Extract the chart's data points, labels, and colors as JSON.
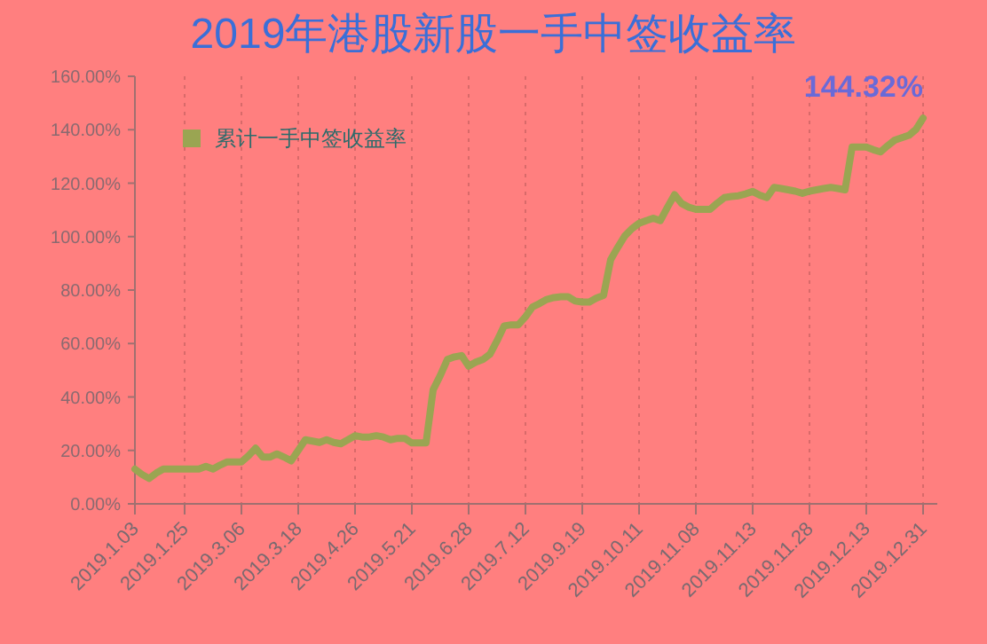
{
  "chart_data": {
    "type": "line",
    "title": "2019年港股新股一手中签收益率",
    "categories": [
      "2019.1.03",
      null,
      null,
      null,
      null,
      null,
      null,
      "2019.1.25",
      null,
      null,
      null,
      null,
      null,
      null,
      null,
      "2019.3.06",
      null,
      null,
      null,
      null,
      null,
      null,
      null,
      "2019.3.18",
      null,
      null,
      null,
      null,
      null,
      null,
      null,
      "2019.4.26",
      null,
      null,
      null,
      null,
      null,
      null,
      null,
      "2019.5.21",
      null,
      null,
      null,
      null,
      null,
      null,
      null,
      "2019.6.28",
      null,
      null,
      null,
      null,
      null,
      null,
      null,
      "2019.7.12",
      null,
      null,
      null,
      null,
      null,
      null,
      null,
      "2019.9.19",
      null,
      null,
      null,
      null,
      null,
      null,
      null,
      "2019.10.11",
      null,
      null,
      null,
      null,
      null,
      null,
      null,
      "2019.11.08",
      null,
      null,
      null,
      null,
      null,
      null,
      null,
      "2019.11.13",
      null,
      null,
      null,
      null,
      null,
      null,
      null,
      "2019.11.28",
      null,
      null,
      null,
      null,
      null,
      null,
      null,
      "2019.12.13",
      null,
      null,
      null,
      null,
      null,
      null,
      null,
      "2019.12.31"
    ],
    "series": [
      {
        "name": "累计一手中签收益率",
        "color": "#9aa552",
        "values": [
          13,
          11,
          9.5,
          11.5,
          13,
          13,
          13,
          13,
          13,
          13,
          14,
          13,
          14.5,
          15.7,
          15.7,
          15.7,
          18,
          20.8,
          17.5,
          17.5,
          18.7,
          17.5,
          16.1,
          20,
          24,
          23.5,
          23,
          24,
          23,
          22.5,
          24,
          25.5,
          25,
          25,
          25.5,
          25,
          24,
          24.5,
          24.5,
          22.8,
          22.8,
          22.8,
          42.7,
          48,
          54,
          55,
          55.5,
          51.5,
          53,
          54,
          56,
          61,
          66.6,
          67,
          67,
          70,
          73.7,
          75,
          76.5,
          77.2,
          77.5,
          77.5,
          75.9,
          75.5,
          75.5,
          77,
          78,
          91.4,
          96,
          100.3,
          103,
          105,
          106,
          106.9,
          106,
          111,
          115.7,
          112.4,
          111,
          110.2,
          110.2,
          110.2,
          112.5,
          114.6,
          115,
          115.3,
          116,
          116.9,
          115.5,
          114.6,
          118.4,
          118,
          117.5,
          117,
          116.2,
          117,
          117.5,
          118,
          118.4,
          118,
          117.5,
          133.5,
          133.5,
          133.5,
          132.5,
          131.7,
          134,
          136.1,
          137,
          137.9,
          140.1,
          144.32
        ],
        "value_labels": [
          null,
          null,
          null,
          null,
          null,
          null,
          null,
          null,
          null,
          null,
          null,
          null,
          null,
          null,
          null,
          null,
          null,
          null,
          null,
          null,
          null,
          null,
          null,
          null,
          null,
          null,
          null,
          null,
          null,
          null,
          null,
          null,
          null,
          null,
          null,
          null,
          null,
          null,
          null,
          null,
          null,
          null,
          null,
          null,
          null,
          null,
          null,
          null,
          null,
          null,
          null,
          null,
          null,
          null,
          null,
          null,
          null,
          null,
          null,
          null,
          null,
          null,
          null,
          null,
          null,
          null,
          null,
          null,
          null,
          null,
          null,
          null,
          null,
          null,
          null,
          null,
          null,
          null,
          null,
          null,
          null,
          null,
          null,
          null,
          null,
          null,
          null,
          null,
          null,
          null,
          null,
          null,
          null,
          null,
          null,
          null,
          null,
          null,
          null,
          null,
          null,
          null,
          null,
          null,
          null,
          null,
          null,
          null,
          null,
          null,
          null,
          "144.32%"
        ]
      }
    ],
    "ylim": [
      0,
      160
    ],
    "yticks": [
      {
        "value": 0,
        "label": "0.00%"
      },
      {
        "value": 20,
        "label": "20.00%"
      },
      {
        "value": 40,
        "label": "40.00%"
      },
      {
        "value": 60,
        "label": "60.00%"
      },
      {
        "value": 80,
        "label": "80.00%"
      },
      {
        "value": 100,
        "label": "100.00%"
      },
      {
        "value": 120,
        "label": "120.00%"
      },
      {
        "value": 140,
        "label": "140.00%"
      },
      {
        "value": 160,
        "label": "160.00%"
      }
    ],
    "grid": "x",
    "legend": "top left",
    "marker": "none",
    "line_style": "solid"
  }
}
